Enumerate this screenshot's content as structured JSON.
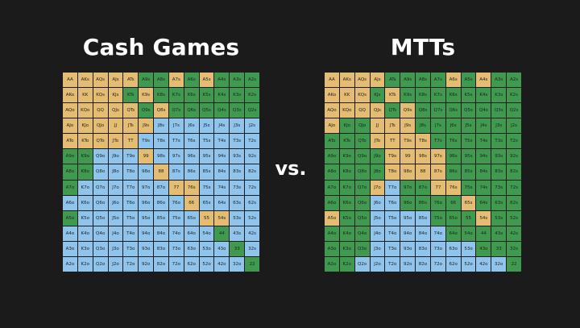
{
  "colors": {
    "background": "#1b1b1b",
    "raise": "#3f9a4f",
    "call": "#e5bd72",
    "fold": "#8fc5ec"
  },
  "titles": {
    "left": "Cash Games",
    "right": "MTTs",
    "vs": "vs."
  },
  "hand_labels": [
    [
      "AA",
      "AKs",
      "AQs",
      "AJs",
      "ATs",
      "A9s",
      "A8s",
      "A7s",
      "A6s",
      "A5s",
      "A4s",
      "A3s",
      "A2s"
    ],
    [
      "AKo",
      "KK",
      "KQs",
      "KJs",
      "KTs",
      "K9s",
      "K8s",
      "K7s",
      "K6s",
      "K5s",
      "K4s",
      "K3s",
      "K2s"
    ],
    [
      "AQo",
      "KQo",
      "QQ",
      "QJs",
      "QTs",
      "Q9s",
      "Q8s",
      "Q7s",
      "Q6s",
      "Q5s",
      "Q4s",
      "Q3s",
      "Q2s"
    ],
    [
      "AJo",
      "KJo",
      "QJo",
      "JJ",
      "JTs",
      "J9s",
      "J8s",
      "J7s",
      "J6s",
      "J5s",
      "J4s",
      "J3s",
      "J2s"
    ],
    [
      "ATo",
      "KTo",
      "QTo",
      "JTo",
      "TT",
      "T9s",
      "T8s",
      "T7s",
      "T6s",
      "T5s",
      "T4s",
      "T3s",
      "T2s"
    ],
    [
      "A9o",
      "K9o",
      "Q9o",
      "J9o",
      "T9o",
      "99",
      "98s",
      "97s",
      "96s",
      "95s",
      "94s",
      "93s",
      "92s"
    ],
    [
      "A8o",
      "K8o",
      "Q8o",
      "J8o",
      "T8o",
      "98o",
      "88",
      "87s",
      "86s",
      "85s",
      "84s",
      "83s",
      "82s"
    ],
    [
      "A7o",
      "K7o",
      "Q7o",
      "J7o",
      "T7o",
      "97o",
      "87o",
      "77",
      "76s",
      "75s",
      "74s",
      "73s",
      "72s"
    ],
    [
      "A6o",
      "K6o",
      "Q6o",
      "J6o",
      "T6o",
      "96o",
      "86o",
      "76o",
      "66",
      "65s",
      "64s",
      "63s",
      "62s"
    ],
    [
      "A5o",
      "K5o",
      "Q5o",
      "J5o",
      "T5o",
      "95o",
      "85o",
      "75o",
      "65o",
      "55",
      "54s",
      "53s",
      "52s"
    ],
    [
      "A4o",
      "K4o",
      "Q4o",
      "J4o",
      "T4o",
      "94o",
      "84o",
      "74o",
      "64o",
      "54o",
      "44",
      "43s",
      "42s"
    ],
    [
      "A3o",
      "K3o",
      "Q3o",
      "J3o",
      "T3o",
      "93o",
      "83o",
      "73o",
      "63o",
      "53o",
      "43o",
      "33",
      "32s"
    ],
    [
      "A2o",
      "K2o",
      "Q2o",
      "J2o",
      "T2o",
      "92o",
      "82o",
      "72o",
      "62o",
      "52o",
      "42o",
      "32o",
      "22"
    ]
  ],
  "cash_colors": [
    "YYYYYGGYGYGGG",
    "YYYYGYGGGGGGG",
    "YYYYYGYGGGGGG",
    "YYYYYYBBBBBBB",
    "YYYYYBBBBBBBB",
    "GGBBBYBBBBBBB",
    "GGBBBBYBBBBBB",
    "GBBBBBBYYBBBB",
    "BBBBBBBBYBBBB",
    "GBBBBBBBBYYBB",
    "BBBBBBBBBBGBB",
    "BBBBBBBBBBBGB",
    "BBBBBBBBBBBBG"
  ],
  "mtt_colors": [
    "YYYYGGGGYGYGG",
    "YYYGYGGGGGGGG",
    "YYYYGYGGGGGGG",
    "YGGYYYGGGGGGG",
    "GGGYYYYGGGGGG",
    "GGGGYYYYGGGGG",
    "GGGGYYYYGGGGG",
    "GGGYBGGYYGGGG",
    "GGGBBGGGGYGGG",
    "YGGBBBBGGGYGG",
    "GGGBBBBBGGGGG",
    "GGGBBBBBBBGGG",
    "GGBBBBBBBBBBG"
  ]
}
